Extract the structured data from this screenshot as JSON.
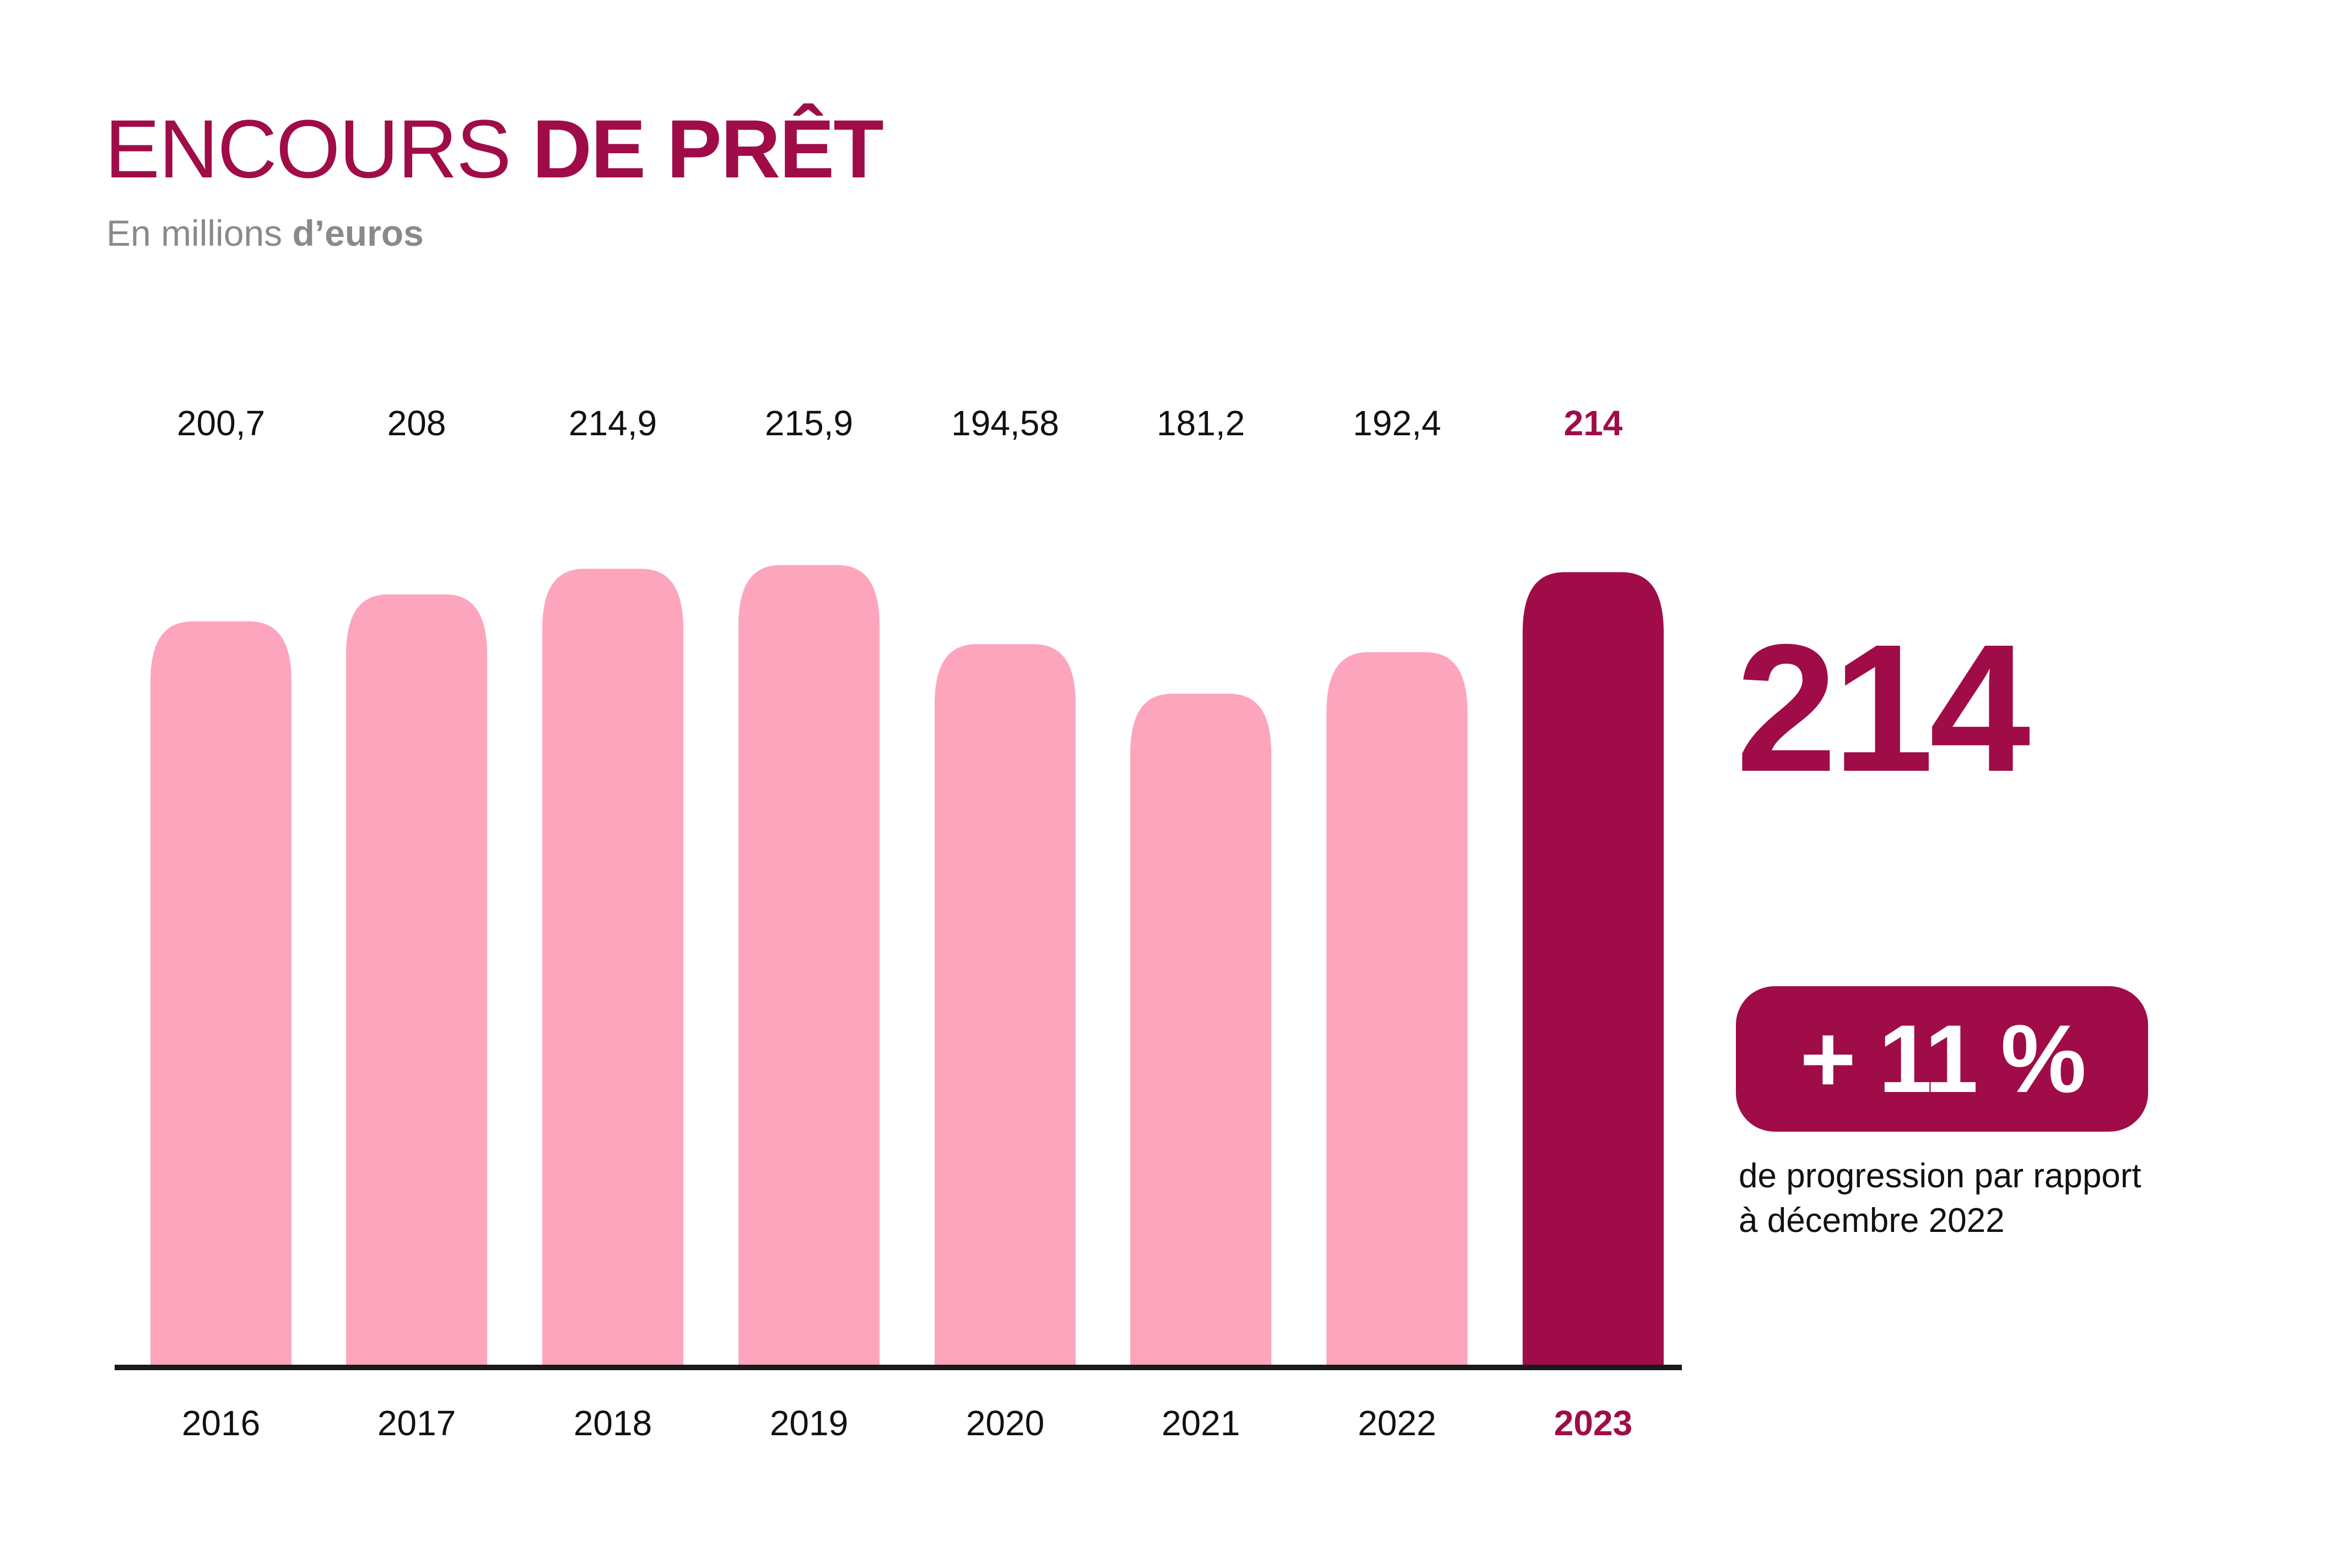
{
  "header": {
    "title_light": "ENCOURS",
    "title_bold": "DE PRÊT",
    "subtitle_light": "En millions",
    "subtitle_bold": "d’euros"
  },
  "highlight": {
    "big_value": "214",
    "badge": "+ 11 %",
    "caption_line1": "de progression par rapport",
    "caption_line2": "à décembre 2022"
  },
  "colors": {
    "accent": "#a00c48",
    "bar": "#fda5bd",
    "axis": "#1a1a1a",
    "text": "#111111"
  },
  "chart_data": {
    "type": "bar",
    "categories": [
      "2016",
      "2017",
      "2018",
      "2019",
      "2020",
      "2021",
      "2022",
      "2023"
    ],
    "values": [
      200.7,
      208,
      214.9,
      215.9,
      194.58,
      181.2,
      192.4,
      214
    ],
    "value_labels": [
      "200,7",
      "208",
      "214,9",
      "215,9",
      "194,58",
      "181,2",
      "192,4",
      "214"
    ],
    "highlight_index": 7,
    "title": "ENCOURS DE PRÊT",
    "subtitle": "En millions d’euros",
    "xlabel": "",
    "ylabel": "",
    "ylim": [
      0,
      216
    ],
    "grid": false
  }
}
